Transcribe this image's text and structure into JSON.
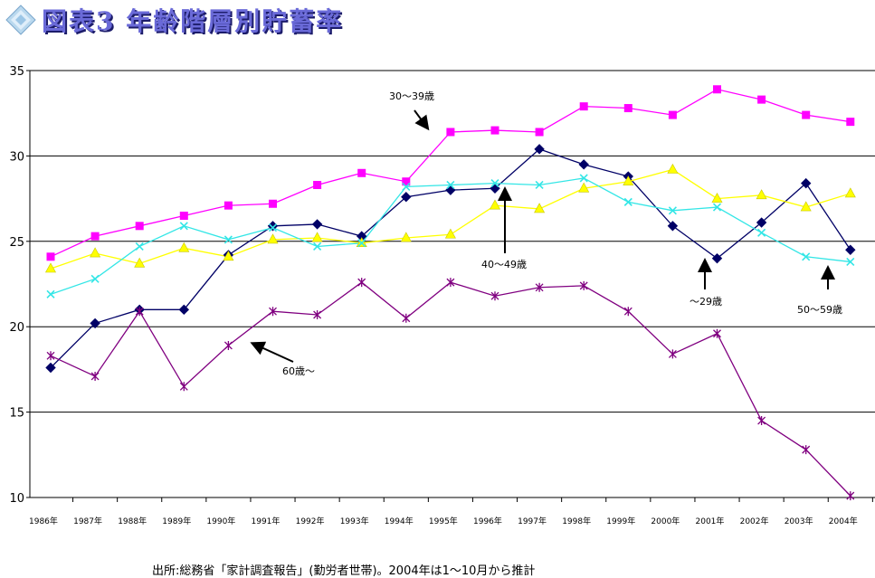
{
  "title": "図表3 年齢階層別貯蓄率",
  "source": "出所:総務省「家計調査報告」(勤労者世帯)。2004年は1～10月から推計",
  "chart_data": {
    "type": "line",
    "title": "図表3 年齢階層別貯蓄率",
    "xlabel": "",
    "ylabel": "",
    "ylim": [
      10,
      35
    ],
    "yticks": [
      10,
      15,
      20,
      25,
      30,
      35
    ],
    "grid": true,
    "categories": [
      "1986年",
      "1987年",
      "1988年",
      "1989年",
      "1990年",
      "1991年",
      "1992年",
      "1993年",
      "1994年",
      "1995年",
      "1996年",
      "1997年",
      "1998年",
      "1999年",
      "2000年",
      "2001年",
      "2002年",
      "2003年",
      "2004年"
    ],
    "series": [
      {
        "name": "〜29歳",
        "color": "#000066",
        "marker": "diamond",
        "values": [
          17.6,
          20.2,
          21.0,
          21.0,
          24.2,
          25.9,
          26.0,
          25.3,
          27.6,
          28.0,
          28.1,
          30.4,
          29.5,
          28.8,
          25.9,
          24.0,
          26.1,
          28.4,
          24.5
        ]
      },
      {
        "name": "30〜39歳",
        "color": "#ff00ff",
        "marker": "square",
        "values": [
          24.1,
          25.3,
          25.9,
          26.5,
          27.1,
          27.2,
          28.3,
          29.0,
          28.5,
          31.4,
          31.5,
          31.4,
          32.9,
          32.8,
          32.4,
          33.9,
          33.3,
          32.4,
          32.0
        ]
      },
      {
        "name": "40〜49歳",
        "color": "#ffff00",
        "marker": "triangle",
        "values": [
          23.4,
          24.3,
          23.7,
          24.6,
          24.1,
          25.1,
          25.2,
          24.9,
          25.2,
          25.4,
          27.1,
          26.9,
          28.1,
          28.5,
          29.2,
          27.5,
          27.7,
          27.0,
          27.8
        ]
      },
      {
        "name": "50〜59歳",
        "color": "#33e6e6",
        "marker": "x",
        "values": [
          21.9,
          22.8,
          24.7,
          25.9,
          25.1,
          25.8,
          24.7,
          24.9,
          28.2,
          28.3,
          28.4,
          28.3,
          28.7,
          27.3,
          26.8,
          27.0,
          25.5,
          24.1,
          23.8
        ]
      },
      {
        "name": "60歳〜",
        "color": "#800080",
        "marker": "star",
        "values": [
          18.3,
          17.1,
          20.9,
          16.5,
          18.9,
          20.9,
          20.7,
          22.6,
          20.5,
          22.6,
          21.8,
          22.3,
          22.4,
          20.9,
          18.4,
          19.6,
          14.5,
          12.8,
          10.1
        ]
      }
    ],
    "annotations": [
      "30〜39歳",
      "40〜49歳",
      "〜29歳",
      "50〜59歳",
      "60歳〜"
    ]
  }
}
